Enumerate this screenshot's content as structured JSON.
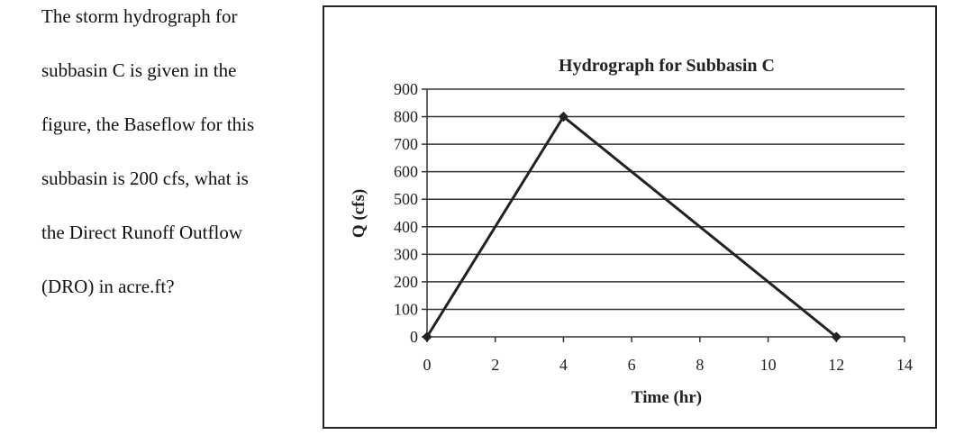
{
  "question": {
    "lines": [
      "The storm hydrograph for",
      "subbasin C is given in the",
      "figure, the Baseflow for this",
      "subbasin is 200 cfs, what is",
      "the Direct Runoff Outflow",
      "(DRO) in acre.ft?"
    ]
  },
  "chart_data": {
    "type": "line",
    "title": "Hydrograph for Subbasin C",
    "xlabel": "Time (hr)",
    "ylabel": "Q (cfs)",
    "xlim": [
      0,
      14
    ],
    "ylim": [
      0,
      900
    ],
    "xticks": [
      0,
      2,
      4,
      6,
      8,
      10,
      12,
      14
    ],
    "yticks": [
      0,
      100,
      200,
      300,
      400,
      500,
      600,
      700,
      800,
      900
    ],
    "grid": "horizontal",
    "series": [
      {
        "x": [
          0,
          4,
          12
        ],
        "y": [
          0,
          800,
          0
        ],
        "color": "#222222"
      }
    ]
  }
}
